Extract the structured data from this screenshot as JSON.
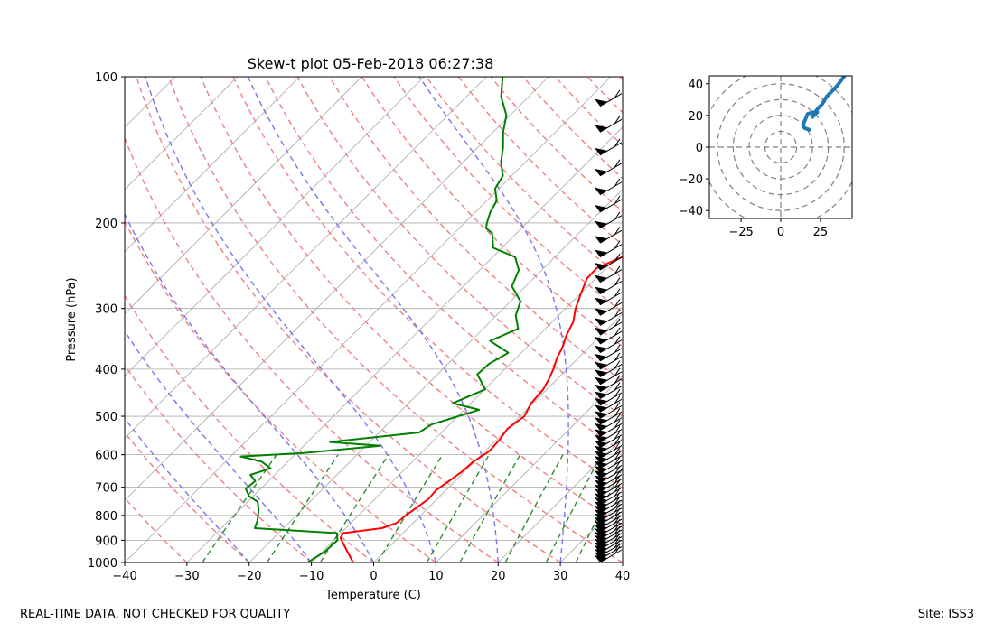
{
  "footer": {
    "left": "REAL-TIME DATA, NOT CHECKED FOR QUALITY",
    "right": "Site: ISS3"
  },
  "chart_data": [
    {
      "type": "line",
      "subtype": "skew-t",
      "title": "Skew-t plot 05-Feb-2018 06:27:38",
      "xlabel": "Temperature (C)",
      "ylabel": "Pressure (hPa)",
      "xlim": [
        -40,
        40
      ],
      "ylim": [
        1000,
        100
      ],
      "y_scale": "log",
      "grid": true,
      "x_ticks": [
        "−40",
        "−30",
        "−20",
        "−10",
        "0",
        "10",
        "20",
        "30",
        "40"
      ],
      "y_ticks": [
        "100",
        "200",
        "300",
        "400",
        "500",
        "600",
        "700",
        "800",
        "900",
        "1000"
      ],
      "y_tick_values": [
        100,
        200,
        300,
        400,
        500,
        600,
        700,
        800,
        900,
        1000
      ],
      "colors": {
        "temperature": "#ff0000",
        "dewpoint": "#008000",
        "dry_adiabats": "#f08080",
        "moist_adiabats": "#7777ee",
        "mixing_ratio": "#2e8b2e",
        "isotherms": "#aaaaaa"
      },
      "series": [
        {
          "role": "temperature",
          "points": [
            [
              -3.3,
              1000
            ],
            [
              -5.4,
              960
            ],
            [
              -7.6,
              920
            ],
            [
              -9.3,
              890
            ],
            [
              -9.6,
              870
            ],
            [
              -4.2,
              850
            ],
            [
              -2.7,
              830
            ],
            [
              -2.4,
              800
            ],
            [
              -1.9,
              770
            ],
            [
              -1.4,
              740
            ],
            [
              -1.6,
              710
            ],
            [
              -1.0,
              680
            ],
            [
              -0.4,
              650
            ],
            [
              -0.2,
              620
            ],
            [
              0.7,
              590
            ],
            [
              0.5,
              560
            ],
            [
              0.0,
              530
            ],
            [
              0.7,
              500
            ],
            [
              -0.3,
              470
            ],
            [
              -0.6,
              440
            ],
            [
              -1.3,
              420
            ],
            [
              -2.2,
              400
            ],
            [
              -3.4,
              380
            ],
            [
              -4.3,
              360
            ],
            [
              -5.6,
              340
            ],
            [
              -6.6,
              320
            ],
            [
              -8.4,
              300
            ],
            [
              -9.9,
              280
            ],
            [
              -11.4,
              260
            ],
            [
              -11.5,
              248
            ],
            [
              -9.8,
              238
            ],
            [
              -8.5,
              232
            ],
            [
              -7.6,
              226
            ],
            [
              -5.9,
              218
            ],
            [
              -3.4,
              210
            ],
            [
              -2.1,
              200
            ],
            [
              -1.4,
              190
            ],
            [
              0.3,
              180
            ],
            [
              1.0,
              170
            ],
            [
              2.8,
              160
            ],
            [
              3.7,
              150
            ],
            [
              5.5,
              140
            ],
            [
              7.1,
              130
            ],
            [
              9.8,
              120
            ],
            [
              11.9,
              110
            ],
            [
              14.7,
              100
            ]
          ]
        },
        {
          "role": "dewpoint",
          "points": [
            [
              -10.6,
              1000
            ],
            [
              -9.6,
              950
            ],
            [
              -9.4,
              900
            ],
            [
              -10.6,
              870
            ],
            [
              -24.6,
              850
            ],
            [
              -25.4,
              820
            ],
            [
              -26.9,
              780
            ],
            [
              -28.4,
              750
            ],
            [
              -30.7,
              730
            ],
            [
              -32.4,
              705
            ],
            [
              -32.1,
              680
            ],
            [
              -33.9,
              660
            ],
            [
              -31.7,
              640
            ],
            [
              -34.2,
              620
            ],
            [
              -38.4,
              605
            ],
            [
              -28.9,
              595
            ],
            [
              -17.7,
              575
            ],
            [
              -26.4,
              565
            ],
            [
              -13.6,
              540
            ],
            [
              -12.9,
              520
            ],
            [
              -7.6,
              485
            ],
            [
              -12.9,
              470
            ],
            [
              -9.9,
              440
            ],
            [
              -13.6,
              410
            ],
            [
              -13.4,
              390
            ],
            [
              -12.1,
              370
            ],
            [
              -16.9,
              350
            ],
            [
              -14.4,
              330
            ],
            [
              -16.9,
              310
            ],
            [
              -18.4,
              290
            ],
            [
              -22.2,
              270
            ],
            [
              -23.7,
              250
            ],
            [
              -26.4,
              235
            ],
            [
              -31.4,
              225
            ],
            [
              -33.9,
              210
            ],
            [
              -35.7,
              205
            ],
            [
              -36.4,
              200
            ],
            [
              -37.6,
              190
            ],
            [
              -38.4,
              180
            ],
            [
              -40.6,
              170
            ],
            [
              -41.4,
              160
            ],
            [
              -43.9,
              150
            ],
            [
              -45.9,
              140
            ],
            [
              -48.4,
              130
            ],
            [
              -50.6,
              120
            ],
            [
              -54.4,
              110
            ],
            [
              -57.4,
              100
            ]
          ]
        }
      ]
    },
    {
      "type": "line",
      "subtype": "hodograph",
      "xlim": [
        -45,
        45
      ],
      "ylim": [
        -45,
        45
      ],
      "x_ticks": [
        "−25",
        "0",
        "25"
      ],
      "y_ticks": [
        "40",
        "20",
        "0",
        "−20",
        "−40"
      ],
      "color": "#1f77b4",
      "series": [
        {
          "points": [
            [
              18,
              11
            ],
            [
              15,
              12
            ],
            [
              14,
              14
            ],
            [
              17,
              21
            ],
            [
              20,
              22
            ],
            [
              23,
              22
            ],
            [
              20,
              19
            ],
            [
              23,
              24
            ],
            [
              26,
              27
            ],
            [
              29,
              32
            ],
            [
              32,
              35
            ],
            [
              35,
              38
            ],
            [
              38,
              42
            ],
            [
              41,
              46
            ]
          ]
        }
      ]
    }
  ]
}
